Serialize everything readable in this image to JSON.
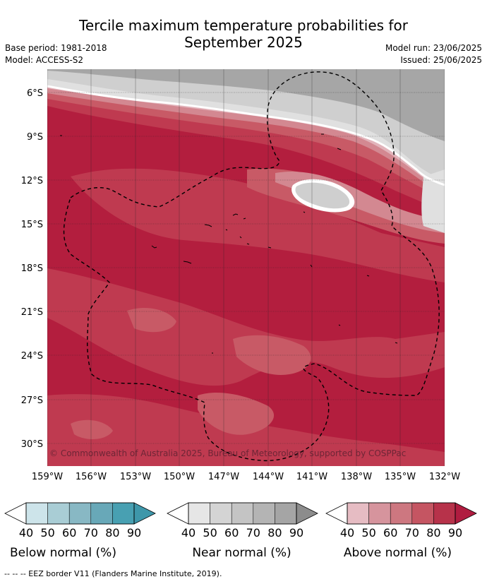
{
  "title_line1": "Tercile maximum temperature probabilities for",
  "title_line2": "September 2025",
  "base_period": "Base period: 1981-2018",
  "model": "Model: ACCESS-S2",
  "model_run": "Model run: 23/06/2025",
  "issued": "Issued: 25/06/2025",
  "lat_labels": [
    "6°S",
    "9°S",
    "12°S",
    "15°S",
    "18°S",
    "21°S",
    "24°S",
    "27°S",
    "30°S"
  ],
  "lon_labels": [
    "159°W",
    "156°W",
    "153°W",
    "150°W",
    "147°W",
    "144°W",
    "141°W",
    "138°W",
    "135°W",
    "132°W"
  ],
  "copyright": "© Commonwealth of Australia 2025, Bureau of Meteorology, supported by COSPPac",
  "colorbars": [
    {
      "title": "Below normal (%)",
      "ticks": [
        "40",
        "50",
        "60",
        "70",
        "80",
        "90"
      ],
      "colors": [
        "#cde4ea",
        "#a9cdd5",
        "#88b8c4",
        "#68a8b8",
        "#48a0b2"
      ]
    },
    {
      "title": "Near normal (%)",
      "ticks": [
        "40",
        "50",
        "60",
        "70",
        "80",
        "90"
      ],
      "colors": [
        "#e6e6e6",
        "#d4d4d4",
        "#c4c4c4",
        "#b4b4b4",
        "#a5a5a5"
      ]
    },
    {
      "title": "Above normal (%)",
      "ticks": [
        "40",
        "50",
        "60",
        "70",
        "80",
        "90"
      ],
      "colors": [
        "#e6bcc3",
        "#d6949d",
        "#cd7780",
        "#c55562",
        "#b7324a"
      ]
    }
  ],
  "footnote": "--  --  -- EEZ border V11 (Flanders Marine Institute, 2019).",
  "colors": {
    "above_90": "#b31e3e",
    "above_80": "#bf3a50",
    "above_70": "#c85a66",
    "above_60": "#d38891",
    "above_50": "#e2b4bb",
    "near_low": "#e0e0e0",
    "near_mid": "#cfcfcf",
    "near_high": "#a6a6a6"
  }
}
